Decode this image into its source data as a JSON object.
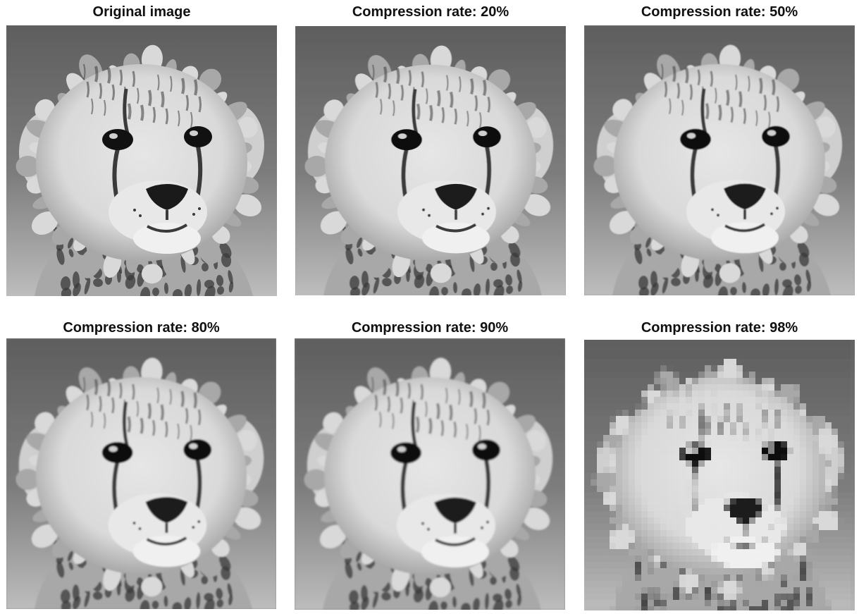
{
  "panels": [
    {
      "caption": "Original image",
      "icon": "cheetah-cub-photo",
      "blur": 0,
      "pixelate": 0
    },
    {
      "caption": "Compression rate: 20%",
      "icon": "cheetah-cub-photo",
      "blur": 0.4,
      "pixelate": 0
    },
    {
      "caption": "Compression rate: 50%",
      "icon": "cheetah-cub-photo",
      "blur": 0.7,
      "pixelate": 0
    },
    {
      "caption": "Compression rate: 80%",
      "icon": "cheetah-cub-photo",
      "blur": 1.0,
      "pixelate": 0
    },
    {
      "caption": "Compression rate: 90%",
      "icon": "cheetah-cub-photo",
      "blur": 1.4,
      "pixelate": 0
    },
    {
      "caption": "Compression rate: 98%",
      "icon": "cheetah-cub-photo",
      "blur": 1.2,
      "pixelate": 1
    }
  ],
  "colors": {
    "background_dark": "#5e5e5e",
    "background_light": "#bdbdbd",
    "fur_light": "#d9d9d9",
    "fur_mid": "#a8a8a8",
    "fur_dark": "#3a3a3a",
    "eye": "#111111",
    "nose": "#1a1a1a"
  }
}
